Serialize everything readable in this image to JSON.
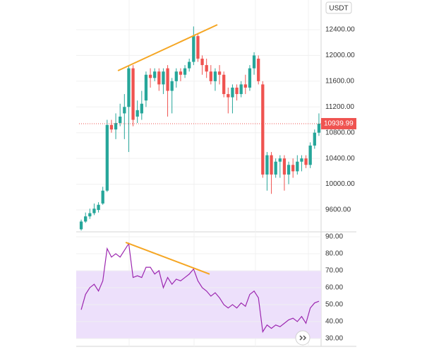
{
  "chart_data": [
    {
      "type": "candlestick",
      "quote_label": "USDT",
      "up_color": "#26a69a",
      "down_color": "#ef5350",
      "open": [
        9300,
        9420,
        9500,
        9550,
        9600,
        9700,
        9900,
        10920,
        10850,
        10950,
        11100,
        11200,
        11800,
        11050,
        11100,
        11300,
        11700,
        11650,
        11750,
        11550,
        11800,
        11450,
        11600,
        11750,
        11700,
        11800,
        11900,
        12300,
        11950,
        11850,
        11750,
        11600,
        11750,
        11700,
        11400,
        11350,
        11500,
        11400,
        11550,
        11500,
        11800,
        11950,
        11550,
        10150,
        10450,
        10150,
        10350,
        10400,
        10150,
        10300,
        10200,
        10350,
        10400,
        10300,
        10600,
        10800
      ],
      "high": [
        9450,
        9560,
        9620,
        9700,
        9720,
        9960,
        11000,
        11000,
        11100,
        11250,
        11400,
        11850,
        11850,
        11300,
        11450,
        11750,
        11800,
        11800,
        11800,
        11800,
        11850,
        11650,
        11800,
        11800,
        11850,
        11950,
        12450,
        12350,
        12000,
        11950,
        11850,
        11800,
        11850,
        11750,
        11500,
        11550,
        11550,
        11600,
        11700,
        11850,
        12050,
        12000,
        11600,
        10500,
        10500,
        10400,
        10450,
        10450,
        10350,
        10400,
        10450,
        10450,
        10450,
        10650,
        10850,
        11100
      ],
      "low": [
        9280,
        9400,
        9460,
        9520,
        9560,
        9680,
        9880,
        10800,
        10700,
        10900,
        10700,
        10500,
        10900,
        10950,
        11000,
        11200,
        11500,
        11600,
        11450,
        11400,
        11050,
        11100,
        11500,
        11600,
        11650,
        11750,
        11850,
        11900,
        11700,
        11650,
        11550,
        11450,
        11550,
        11350,
        11100,
        11100,
        11300,
        11350,
        11400,
        11450,
        11700,
        11550,
        10100,
        9900,
        9850,
        10100,
        10100,
        9900,
        10000,
        10100,
        10150,
        10200,
        10250,
        10250,
        10550,
        10750
      ],
      "close": [
        9420,
        9500,
        9550,
        9620,
        9680,
        9900,
        10920,
        10850,
        10950,
        11050,
        11200,
        11800,
        11000,
        11150,
        11250,
        11700,
        11650,
        11750,
        11550,
        11750,
        11450,
        11600,
        11750,
        11700,
        11800,
        11900,
        12300,
        11950,
        11850,
        11750,
        11600,
        11750,
        11700,
        11400,
        11350,
        11500,
        11400,
        11550,
        11500,
        11800,
        12000,
        11600,
        10150,
        10450,
        10150,
        10350,
        10400,
        10150,
        10300,
        10200,
        10350,
        10400,
        10300,
        10600,
        10800,
        10939.99
      ],
      "ylim": [
        9260,
        12861
      ],
      "yticks": [
        {
          "value": 9600,
          "label": "9600.00"
        },
        {
          "value": 10000,
          "label": "10000.00"
        },
        {
          "value": 10400,
          "label": "10400.00"
        },
        {
          "value": 10800,
          "label": "10800.00"
        },
        {
          "value": 11200,
          "label": "11200.00"
        },
        {
          "value": 11600,
          "label": "11600.00"
        },
        {
          "value": 12000,
          "label": "12000.00"
        },
        {
          "value": 12400,
          "label": "12400.00"
        }
      ],
      "trendline": {
        "x": [
          8.5,
          31.5
        ],
        "y": [
          11763,
          12477
        ],
        "color": "#f5a623"
      },
      "grid": true
    },
    {
      "type": "line",
      "color": "#9c27b0",
      "values": [
        47,
        56,
        60,
        62,
        58,
        64,
        83,
        78,
        80,
        78,
        82,
        86,
        66,
        67,
        66,
        72,
        72,
        68,
        70,
        60,
        66,
        62,
        65,
        64,
        66,
        68,
        71,
        64,
        60,
        58,
        55,
        57,
        54,
        50,
        48,
        50,
        48,
        51,
        49,
        56,
        58,
        54,
        34,
        38,
        36,
        38,
        37,
        39,
        41,
        42,
        40,
        43,
        39,
        48,
        51,
        52
      ],
      "ylim": [
        25.4,
        92.9
      ],
      "yticks": [
        {
          "value": 30,
          "label": "30.00"
        },
        {
          "value": 40,
          "label": "40.00"
        },
        {
          "value": 50,
          "label": "50.00"
        },
        {
          "value": 60,
          "label": "60.00"
        },
        {
          "value": 70,
          "label": "70.00"
        },
        {
          "value": 80,
          "label": "80.00"
        },
        {
          "value": 90,
          "label": "90.00"
        }
      ],
      "band": [
        30,
        70
      ],
      "band_color": "#ede0fb",
      "trendline": {
        "x": [
          10.3,
          29.7
        ],
        "y": [
          86.7,
          68
        ],
        "color": "#f5a623"
      },
      "grid": true
    }
  ]
}
